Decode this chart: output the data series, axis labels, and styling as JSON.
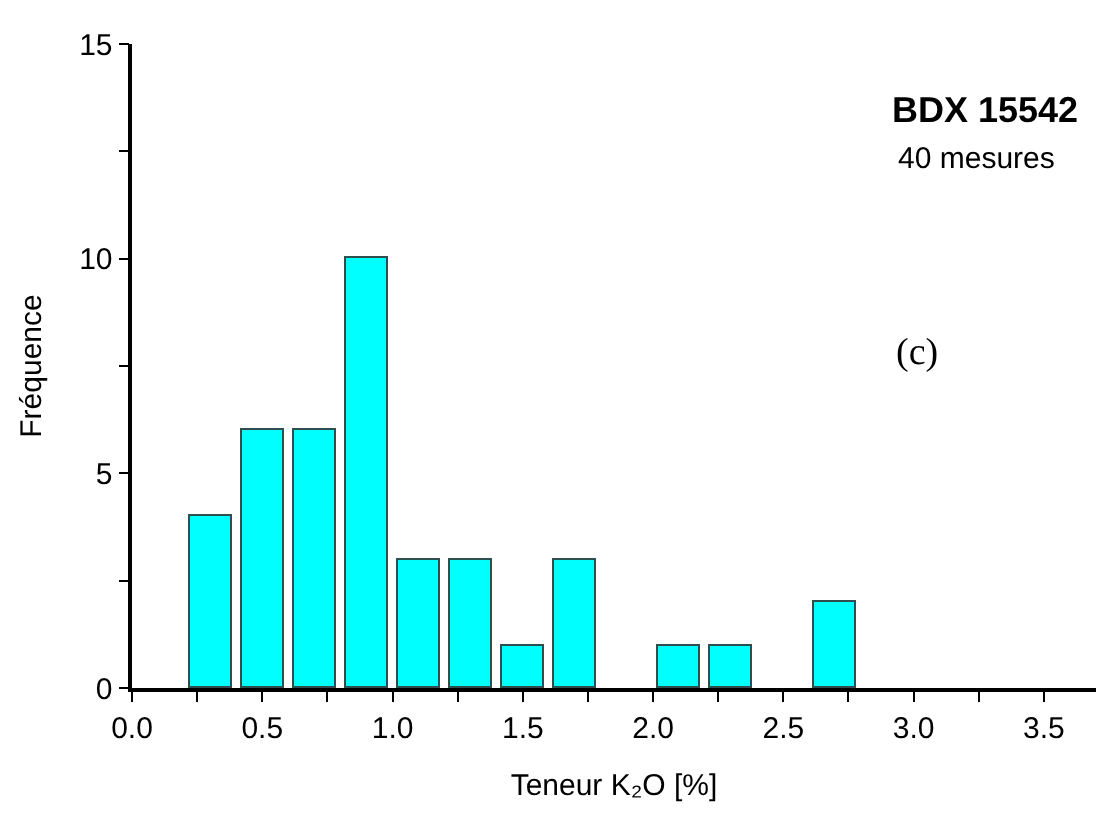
{
  "chart_data": {
    "type": "histogram",
    "title": "BDX 15542",
    "subtitle": "40 mesures",
    "xlabel": "Teneur K₂O [%]",
    "ylabel": "Fréquence",
    "annotations": [
      "(c)"
    ],
    "bins": [
      0.2,
      0.4,
      0.6,
      0.8,
      1.0,
      1.2,
      1.4,
      1.6,
      1.8,
      2.0,
      2.2,
      2.4,
      2.6,
      2.8
    ],
    "values": [
      4,
      6,
      6,
      10,
      3,
      3,
      1,
      3,
      0,
      1,
      1,
      0,
      2
    ],
    "color": "#00ffff",
    "xlim": [
      0,
      3.7
    ],
    "ylim": [
      0,
      15
    ],
    "xticks": [
      {
        "value": 0,
        "label": "0.0"
      },
      {
        "value": 0.25,
        "label": null
      },
      {
        "value": 0.5,
        "label": "0.5"
      },
      {
        "value": 0.75,
        "label": null
      },
      {
        "value": 1.0,
        "label": "1.0"
      },
      {
        "value": 1.25,
        "label": null
      },
      {
        "value": 1.5,
        "label": "1.5"
      },
      {
        "value": 1.75,
        "label": null
      },
      {
        "value": 2.0,
        "label": "2.0"
      },
      {
        "value": 2.25,
        "label": null
      },
      {
        "value": 2.5,
        "label": "2.5"
      },
      {
        "value": 2.75,
        "label": null
      },
      {
        "value": 3.0,
        "label": "3.0"
      },
      {
        "value": 3.25,
        "label": null
      },
      {
        "value": 3.5,
        "label": "3.5"
      }
    ],
    "yticks": [
      0,
      {
        "value": 2.5,
        "label": null
      },
      5,
      {
        "value": 7.5,
        "label": null
      },
      10,
      {
        "value": 12.5,
        "label": null
      },
      15
    ]
  }
}
